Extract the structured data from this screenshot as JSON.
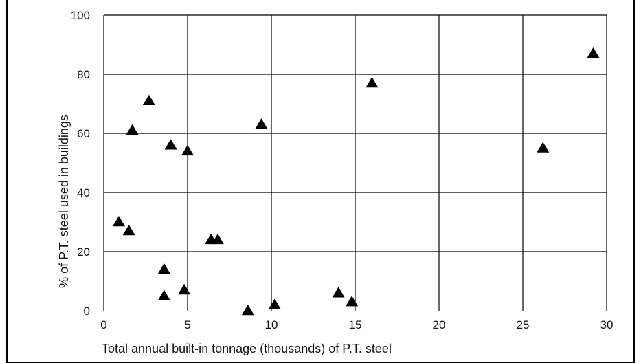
{
  "chart_data": {
    "type": "scatter",
    "title": "",
    "xlabel": "Total annual built-in tonnage (thousands) of P.T. steel",
    "ylabel": "% of P.T. steel used in buildings",
    "xlim": [
      0,
      30
    ],
    "ylim": [
      0,
      100
    ],
    "x_ticks": [
      0,
      5,
      10,
      15,
      20,
      25,
      30
    ],
    "y_ticks": [
      0,
      20,
      40,
      60,
      80,
      100
    ],
    "x_tick_labels": [
      "0",
      "5",
      "10",
      "15",
      "20",
      "25",
      "30"
    ],
    "y_tick_labels": [
      "0",
      "20",
      "40",
      "60",
      "80",
      "100"
    ],
    "grid": true,
    "legend": "none",
    "marker": "triangle",
    "marker_color": "#000000",
    "points": [
      {
        "x": 0.9,
        "y": 30
      },
      {
        "x": 1.5,
        "y": 27
      },
      {
        "x": 1.7,
        "y": 61
      },
      {
        "x": 2.7,
        "y": 71
      },
      {
        "x": 3.6,
        "y": 14
      },
      {
        "x": 3.6,
        "y": 5
      },
      {
        "x": 4.0,
        "y": 56
      },
      {
        "x": 4.8,
        "y": 7
      },
      {
        "x": 5.0,
        "y": 54
      },
      {
        "x": 6.4,
        "y": 24
      },
      {
        "x": 6.8,
        "y": 24
      },
      {
        "x": 8.6,
        "y": 0
      },
      {
        "x": 9.4,
        "y": 63
      },
      {
        "x": 10.2,
        "y": 2
      },
      {
        "x": 14.0,
        "y": 6
      },
      {
        "x": 14.8,
        "y": 3
      },
      {
        "x": 16.0,
        "y": 77
      },
      {
        "x": 26.2,
        "y": 55
      },
      {
        "x": 29.2,
        "y": 87
      }
    ]
  }
}
